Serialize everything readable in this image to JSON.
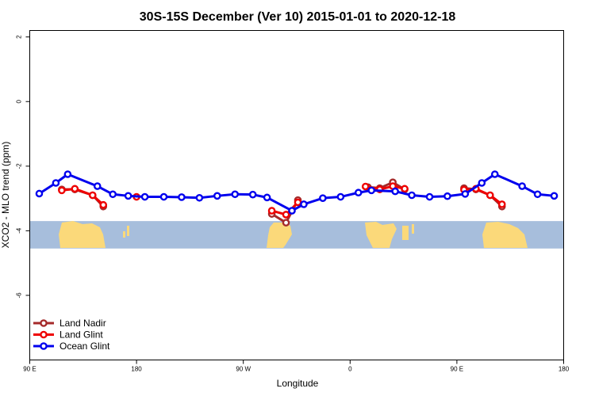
{
  "chart_data": {
    "type": "line",
    "title": "30S-15S December (Ver 10)   2015-01-01 to 2020-12-18",
    "xlabel": "Longitude",
    "ylabel": "XCO2 - MLO trend (ppm)",
    "xlim": [
      90,
      540
    ],
    "ylim": [
      -8,
      2.2
    ],
    "xticks": [
      {
        "value": 90,
        "label": "90 E"
      },
      {
        "value": 180,
        "label": "180"
      },
      {
        "value": 270,
        "label": "90 W"
      },
      {
        "value": 360,
        "label": "0"
      },
      {
        "value": 450,
        "label": "90 E"
      },
      {
        "value": 540,
        "label": "180"
      }
    ],
    "yticks": [
      {
        "value": 2,
        "label": "2"
      },
      {
        "value": 0,
        "label": "0"
      },
      {
        "value": -2,
        "label": "-2"
      },
      {
        "value": -4,
        "label": "-4"
      },
      {
        "value": -6,
        "label": "-6"
      }
    ],
    "grid": false,
    "legend_position": "bottom-left",
    "background_map": {
      "colors": {
        "ocean": "#a7bedc",
        "land": "#fbd97a"
      },
      "y_range": [
        -4.55,
        -3.7
      ]
    },
    "series": [
      {
        "name": "Land Nadir",
        "color": "#a52a2a",
        "segments": [
          [
            [
              117,
              -2.72
            ],
            [
              128,
              -2.72
            ],
            [
              143,
              -2.9
            ],
            [
              152,
              -3.25
            ]
          ],
          [
            [
              294,
              -3.48
            ],
            [
              306,
              -3.75
            ],
            [
              316,
              -3.05
            ]
          ],
          [
            [
              375,
              -2.65
            ],
            [
              385,
              -2.68
            ],
            [
              396,
              -2.5
            ],
            [
              406,
              -2.72
            ]
          ],
          [
            [
              456,
              -2.68
            ],
            [
              466,
              -2.72
            ],
            [
              478,
              -2.9
            ],
            [
              488,
              -3.25
            ]
          ]
        ]
      },
      {
        "name": "Land Glint",
        "color": "#ee0000",
        "segments": [
          [
            [
              117,
              -2.75
            ],
            [
              128,
              -2.7
            ],
            [
              143,
              -2.9
            ],
            [
              152,
              -3.2
            ]
          ],
          [
            [
              180,
              -2.95
            ]
          ],
          [
            [
              294,
              -3.38
            ],
            [
              306,
              -3.5
            ],
            [
              316,
              -3.12
            ]
          ],
          [
            [
              373,
              -2.63
            ],
            [
              385,
              -2.72
            ],
            [
              396,
              -2.62
            ],
            [
              406,
              -2.7
            ]
          ],
          [
            [
              456,
              -2.73
            ],
            [
              466,
              -2.7
            ],
            [
              478,
              -2.9
            ],
            [
              488,
              -3.18
            ]
          ]
        ]
      },
      {
        "name": "Ocean Glint",
        "color": "#0000ee",
        "segments": [
          [
            [
              98,
              -2.85
            ],
            [
              112,
              -2.52
            ],
            [
              122,
              -2.25
            ],
            [
              147,
              -2.62
            ],
            [
              160,
              -2.87
            ],
            [
              173,
              -2.92
            ],
            [
              187,
              -2.95
            ],
            [
              203,
              -2.95
            ],
            [
              218,
              -2.96
            ],
            [
              233,
              -2.98
            ],
            [
              248,
              -2.92
            ],
            [
              263,
              -2.87
            ],
            [
              278,
              -2.88
            ],
            [
              290,
              -2.97
            ],
            [
              311,
              -3.38
            ],
            [
              321,
              -3.18
            ],
            [
              337,
              -2.99
            ],
            [
              352,
              -2.95
            ],
            [
              367,
              -2.82
            ],
            [
              378,
              -2.75
            ],
            [
              398,
              -2.78
            ],
            [
              412,
              -2.9
            ],
            [
              427,
              -2.95
            ],
            [
              442,
              -2.93
            ],
            [
              457,
              -2.86
            ],
            [
              471,
              -2.52
            ],
            [
              482,
              -2.25
            ],
            [
              505,
              -2.62
            ],
            [
              518,
              -2.87
            ],
            [
              532,
              -2.92
            ]
          ]
        ]
      }
    ]
  }
}
